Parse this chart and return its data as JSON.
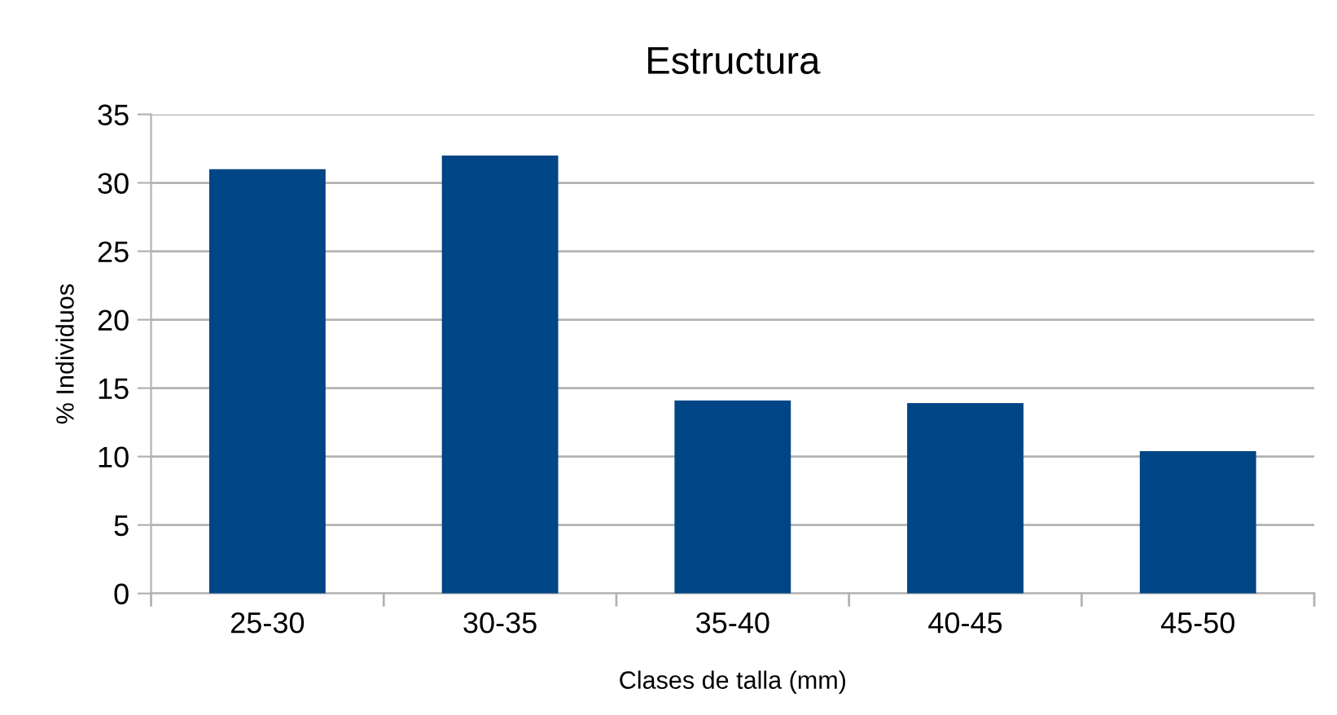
{
  "chart_data": {
    "type": "bar",
    "title": "Estructura",
    "xlabel": "Clases de talla (mm)",
    "ylabel": "% Individuos",
    "categories": [
      "25-30",
      "30-35",
      "35-40",
      "40-45",
      "45-50"
    ],
    "values": [
      31,
      32,
      14.1,
      13.9,
      10.4
    ],
    "color": "#004586",
    "ylim": [
      0,
      35
    ],
    "yticks": [
      0,
      5,
      10,
      15,
      20,
      25,
      30,
      35
    ],
    "grid": "y"
  }
}
